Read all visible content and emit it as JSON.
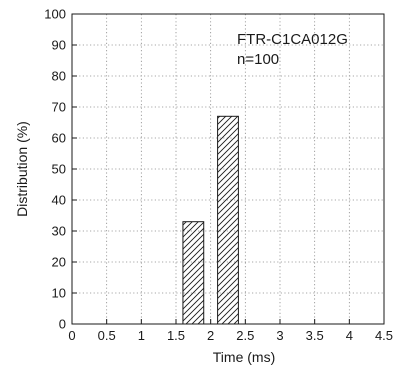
{
  "chart_data": {
    "type": "bar",
    "bars": [
      {
        "x_start": 1.6,
        "x_end": 1.9,
        "value": 33
      },
      {
        "x_start": 2.1,
        "x_end": 2.4,
        "value": 67
      }
    ],
    "xlabel": "Time (ms)",
    "ylabel": "Distribution (%)",
    "xlim": [
      0,
      4.5
    ],
    "ylim": [
      0,
      100
    ],
    "x_ticks": [
      "0",
      "0.5",
      "1",
      "1.5",
      "2",
      "2.5",
      "3",
      "3.5",
      "4",
      "4.5"
    ],
    "y_ticks": [
      "0",
      "10",
      "20",
      "30",
      "40",
      "50",
      "60",
      "70",
      "80",
      "90",
      "100"
    ],
    "annotations": [
      "FTR-C1CA012G",
      "n=100"
    ],
    "grid": true,
    "bar_fill": "hatched",
    "colors": {
      "axis": "#1a1a1a",
      "grid": "#8a8a8a",
      "bar_stroke": "#1a1a1a",
      "hatch": "#1a1a1a"
    }
  }
}
